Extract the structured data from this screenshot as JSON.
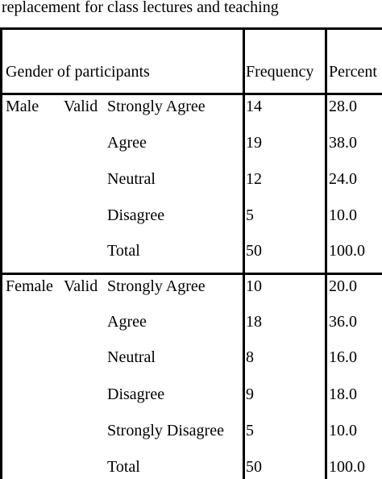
{
  "caption": "replacement for class lectures and teaching",
  "table": {
    "header": {
      "group_label": "Gender of participants",
      "frequency_label": "Frequency",
      "percent_label": "Percent"
    },
    "groups": [
      {
        "gender": "Male",
        "validity": "Valid",
        "rows": [
          {
            "response": "Strongly Agree",
            "frequency": "14",
            "percent": "28.0"
          },
          {
            "response": "Agree",
            "frequency": "19",
            "percent": "38.0"
          },
          {
            "response": "Neutral",
            "frequency": "12",
            "percent": "24.0"
          },
          {
            "response": "Disagree",
            "frequency": "5",
            "percent": "10.0"
          },
          {
            "response": "Total",
            "frequency": "50",
            "percent": "100.0"
          }
        ]
      },
      {
        "gender": "Female",
        "validity": "Valid",
        "rows": [
          {
            "response": "Strongly Agree",
            "frequency": "10",
            "percent": "20.0"
          },
          {
            "response": "Agree",
            "frequency": "18",
            "percent": "36.0"
          },
          {
            "response": "Neutral",
            "frequency": "8",
            "percent": "16.0"
          },
          {
            "response": "Disagree",
            "frequency": "9",
            "percent": "18.0"
          },
          {
            "response": "Strongly Disagree",
            "frequency": "5",
            "percent": "10.0"
          },
          {
            "response": "Total",
            "frequency": "50",
            "percent": "100.0"
          }
        ]
      }
    ]
  }
}
